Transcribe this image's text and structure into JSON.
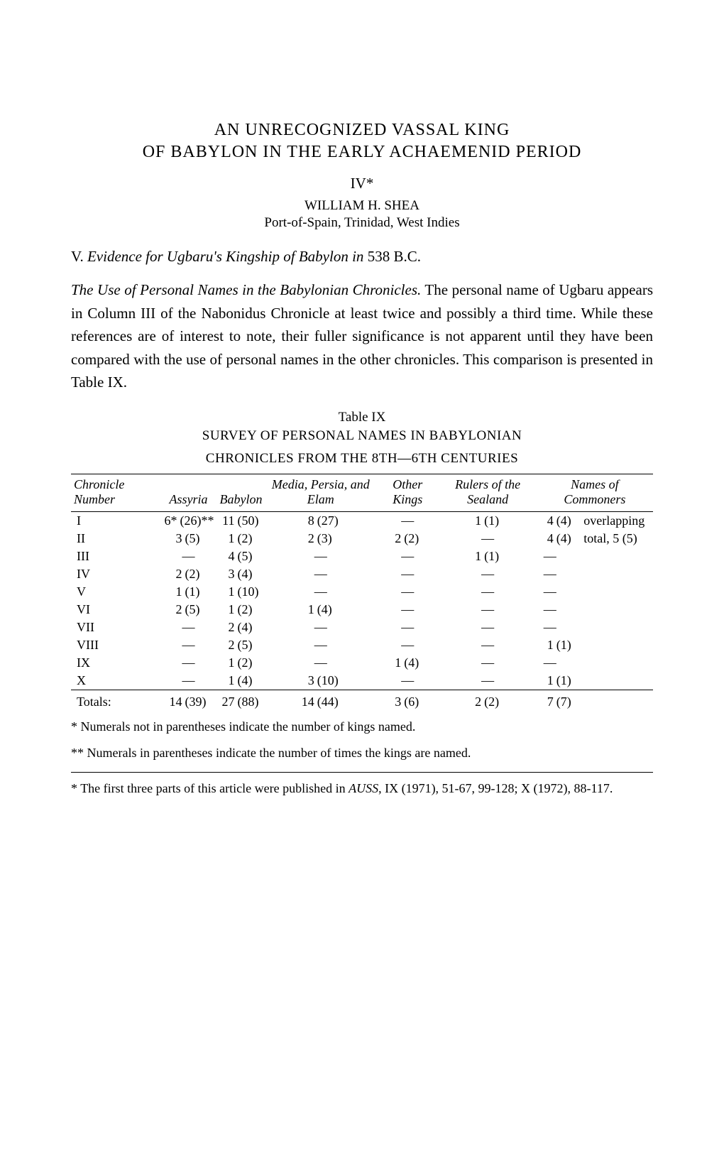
{
  "title_line1": "AN UNRECOGNIZED VASSAL KING",
  "title_line2": "OF BABYLON IN THE EARLY ACHAEMENID PERIOD",
  "part": "IV*",
  "author": "WILLIAM H. SHEA",
  "affiliation": "Port-of-Spain, Trinidad, West Indies",
  "section": {
    "roman": "V.",
    "italic": "Evidence for Ugbaru's Kingship of Babylon in",
    "tail": "538 B.C."
  },
  "subhead_italic": "The Use of Personal Names in the Babylonian Chronicles.",
  "paragraph": "The personal name of Ugbaru appears in Column III of the Nabonidus Chronicle at least twice and possibly a third time. While these references are of interest to note, their fuller significance is not apparent until they have been compared with the use of personal names in the other chronicles. This comparison is presented in Table IX.",
  "table": {
    "label": "Table IX",
    "caption_line1": "SURVEY OF PERSONAL NAMES IN BABYLONIAN",
    "caption_line2": "CHRONICLES FROM THE 8TH—6TH CENTURIES",
    "headers": {
      "chronicle": "Chronicle Number",
      "assyria": "Assyria",
      "babylon": "Babylon",
      "media": "Media, Persia, and Elam",
      "other": "Other Kings",
      "sealand": "Rulers of the Sealand",
      "commoners": "Names of Commoners"
    },
    "rows": [
      {
        "n": "I",
        "assyria_n": "6*",
        "assyria_p": "(26)**",
        "babylon_n": "11",
        "babylon_p": "(50)",
        "media_n": "8",
        "media_p": "(27)",
        "other_n": "—",
        "other_p": "",
        "sealand_n": "1",
        "sealand_p": "(1)",
        "comm_n": "4",
        "comm_p": "(4)",
        "comm_note": "overlapping"
      },
      {
        "n": "II",
        "assyria_n": "3",
        "assyria_p": "(5)",
        "babylon_n": "1",
        "babylon_p": "(2)",
        "media_n": "2",
        "media_p": "(3)",
        "other_n": "2",
        "other_p": "(2)",
        "sealand_n": "—",
        "sealand_p": "",
        "comm_n": "4",
        "comm_p": "(4)",
        "comm_note": "total, 5 (5)"
      },
      {
        "n": "III",
        "assyria_n": "—",
        "assyria_p": "",
        "babylon_n": "4",
        "babylon_p": "(5)",
        "media_n": "—",
        "media_p": "",
        "other_n": "—",
        "other_p": "",
        "sealand_n": "1",
        "sealand_p": "(1)",
        "comm_n": "—",
        "comm_p": "",
        "comm_note": ""
      },
      {
        "n": "IV",
        "assyria_n": "2",
        "assyria_p": "(2)",
        "babylon_n": "3",
        "babylon_p": "(4)",
        "media_n": "—",
        "media_p": "",
        "other_n": "—",
        "other_p": "",
        "sealand_n": "—",
        "sealand_p": "",
        "comm_n": "—",
        "comm_p": "",
        "comm_note": ""
      },
      {
        "n": "V",
        "assyria_n": "1",
        "assyria_p": "(1)",
        "babylon_n": "1",
        "babylon_p": "(10)",
        "media_n": "—",
        "media_p": "",
        "other_n": "—",
        "other_p": "",
        "sealand_n": "—",
        "sealand_p": "",
        "comm_n": "—",
        "comm_p": "",
        "comm_note": ""
      },
      {
        "n": "VI",
        "assyria_n": "2",
        "assyria_p": "(5)",
        "babylon_n": "1",
        "babylon_p": "(2)",
        "media_n": "1",
        "media_p": "(4)",
        "other_n": "—",
        "other_p": "",
        "sealand_n": "—",
        "sealand_p": "",
        "comm_n": "—",
        "comm_p": "",
        "comm_note": ""
      },
      {
        "n": "VII",
        "assyria_n": "—",
        "assyria_p": "",
        "babylon_n": "2",
        "babylon_p": "(4)",
        "media_n": "—",
        "media_p": "",
        "other_n": "—",
        "other_p": "",
        "sealand_n": "—",
        "sealand_p": "",
        "comm_n": "—",
        "comm_p": "",
        "comm_note": ""
      },
      {
        "n": "VIII",
        "assyria_n": "—",
        "assyria_p": "",
        "babylon_n": "2",
        "babylon_p": "(5)",
        "media_n": "—",
        "media_p": "",
        "other_n": "—",
        "other_p": "",
        "sealand_n": "—",
        "sealand_p": "",
        "comm_n": "1",
        "comm_p": "(1)",
        "comm_note": ""
      },
      {
        "n": "IX",
        "assyria_n": "—",
        "assyria_p": "",
        "babylon_n": "1",
        "babylon_p": "(2)",
        "media_n": "—",
        "media_p": "",
        "other_n": "1",
        "other_p": "(4)",
        "sealand_n": "—",
        "sealand_p": "",
        "comm_n": "—",
        "comm_p": "",
        "comm_note": ""
      },
      {
        "n": "X",
        "assyria_n": "—",
        "assyria_p": "",
        "babylon_n": "1",
        "babylon_p": "(4)",
        "media_n": "3",
        "media_p": "(10)",
        "other_n": "—",
        "other_p": "",
        "sealand_n": "—",
        "sealand_p": "",
        "comm_n": "1",
        "comm_p": "(1)",
        "comm_note": ""
      }
    ],
    "totals": {
      "label": "Totals:",
      "assyria_n": "14",
      "assyria_p": "(39)",
      "babylon_n": "27",
      "babylon_p": "(88)",
      "media_n": "14",
      "media_p": "(44)",
      "other_n": "3",
      "other_p": "(6)",
      "sealand_n": "2",
      "sealand_p": "(2)",
      "comm_n": "7",
      "comm_p": "(7)"
    },
    "note1": "* Numerals not in parentheses indicate the number of kings named.",
    "note2": "** Numerals in parentheses indicate the number of times the kings are named."
  },
  "footnote": {
    "marker": "*",
    "text_a": "The first three parts of this article were published in ",
    "journal": "AUSS",
    "text_b": ", IX (1971), 51-67, 99-128; X (1972), 88-117."
  }
}
